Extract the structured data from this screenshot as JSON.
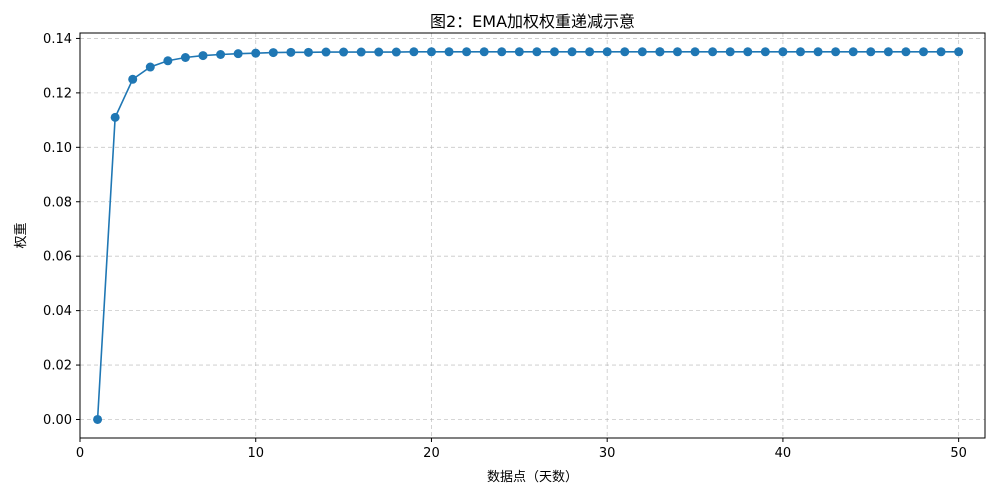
{
  "chart_data": {
    "type": "line",
    "title": "图2：EMA加权权重递减示意",
    "xlabel": "数据点（天数）",
    "ylabel": "权重",
    "xlim": [
      0,
      51.5
    ],
    "ylim": [
      -0.0068,
      0.142
    ],
    "xticks": [
      0,
      10,
      20,
      30,
      40,
      50
    ],
    "yticks": [
      0.0,
      0.02,
      0.04,
      0.06,
      0.08,
      0.1,
      0.12,
      0.14
    ],
    "ytick_labels": [
      "0.00",
      "0.02",
      "0.04",
      "0.06",
      "0.08",
      "0.10",
      "0.12",
      "0.14"
    ],
    "grid": true,
    "legend": false,
    "series": [
      {
        "color": "#1f77b4",
        "marker": "circle",
        "x": [
          1,
          2,
          3,
          4,
          5,
          6,
          7,
          8,
          9,
          10,
          11,
          12,
          13,
          14,
          15,
          16,
          17,
          18,
          19,
          20,
          21,
          22,
          23,
          24,
          25,
          26,
          27,
          28,
          29,
          30,
          31,
          32,
          33,
          33,
          34,
          35,
          36,
          37,
          38,
          39,
          40,
          41,
          42,
          43,
          44,
          45,
          46,
          47,
          48,
          49,
          50
        ],
        "y": [
          0.0,
          0.111,
          0.125,
          0.1295,
          0.1318,
          0.133,
          0.1337,
          0.1341,
          0.1344,
          0.1346,
          0.1348,
          0.1349,
          0.1349,
          0.135,
          0.135,
          0.135,
          0.135,
          0.135,
          0.1351,
          0.1351,
          0.1351,
          0.1351,
          0.1351,
          0.1351,
          0.1351,
          0.1351,
          0.1351,
          0.1351,
          0.1351,
          0.1351,
          0.1351,
          0.1351,
          0.1351,
          0.1351,
          0.1351,
          0.1351,
          0.1351,
          0.1351,
          0.1351,
          0.1351,
          0.1351,
          0.1351,
          0.1351,
          0.1351,
          0.1351,
          0.1351,
          0.1351,
          0.1351,
          0.1351,
          0.1351,
          0.1351
        ]
      }
    ]
  }
}
